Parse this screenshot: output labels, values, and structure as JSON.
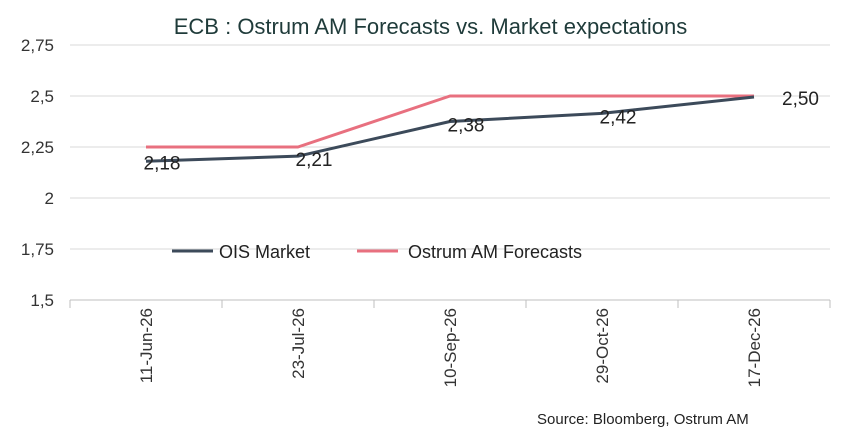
{
  "chart_data": {
    "type": "line",
    "title": "ECB :  Ostrum AM Forecasts vs. Market expectations",
    "categories": [
      "11-Jun-26",
      "23-Jul-26",
      "10-Sep-26",
      "29-Oct-26",
      "17-Dec-26"
    ],
    "y_tick_labels": [
      "1,5",
      "1,75",
      "2",
      "2,25",
      "2,5",
      "2,75"
    ],
    "ylim": [
      1.5,
      2.75
    ],
    "grid": true,
    "legend_position": "bottom-left, inside plot",
    "series": [
      {
        "name": "OIS Market",
        "color": "#3c4a5a",
        "values": [
          2.18,
          2.205,
          2.375,
          2.415,
          2.495
        ],
        "data_labels": [
          "2,18",
          "2,21",
          "2,38",
          "2,42",
          "2,50"
        ]
      },
      {
        "name": "Ostrum AM Forecasts",
        "color": "#e8707f",
        "values": [
          2.25,
          2.25,
          2.5,
          2.5,
          2.5
        ]
      }
    ],
    "source_note": "Source: Bloomberg, Ostrum AM"
  }
}
